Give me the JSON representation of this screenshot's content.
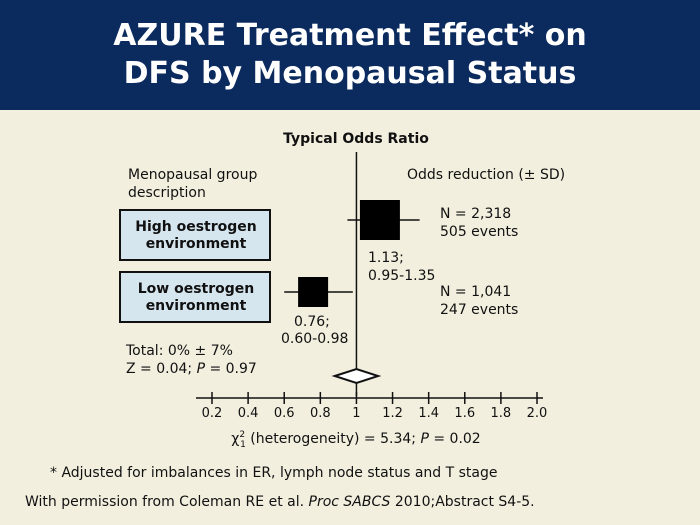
{
  "slide": {
    "title_line1": "AZURE Treatment Effect* on",
    "title_line2": "DFS by Menopausal Status",
    "footnote": "* Adjusted for imbalances in ER, lymph node status and T stage",
    "citation_pre": "With permission from Coleman RE et al. ",
    "citation_journal": "Proc SABCS",
    "citation_post": " 2010;Abstract S4-5.",
    "colors": {
      "header_bg": "#0b2a5e",
      "slide_bg": "#f3efdf",
      "box_fill": "#d6e6ef"
    }
  },
  "chart_data": {
    "type": "forest",
    "axis_title": "Typical Odds Ratio",
    "left_header_line1": "Menopausal group",
    "left_header_line2": "description",
    "right_header": "Odds reduction (± SD)",
    "xlim": [
      0.2,
      2.0
    ],
    "ticks": [
      0.2,
      0.4,
      0.6,
      0.8,
      1,
      1.2,
      1.4,
      1.6,
      1.8,
      2.0
    ],
    "tick_labels": [
      "0.2",
      "0.4",
      "0.6",
      "0.8",
      "1",
      "1.2",
      "1.4",
      "1.6",
      "1.8",
      "2.0"
    ],
    "reference": 1,
    "rows": [
      {
        "label_line1": "High oestrogen",
        "label_line2": "environment",
        "or": 1.13,
        "ci_low": 0.95,
        "ci_high": 1.35,
        "or_label": "1.13;",
        "ci_label": "0.95-1.35",
        "n_label": "N = 2,318",
        "events_label": "505 events"
      },
      {
        "label_line1": "Low oestrogen",
        "label_line2": "environment",
        "or": 0.76,
        "ci_low": 0.6,
        "ci_high": 0.98,
        "or_label": "0.76;",
        "ci_label": "0.60-0.98",
        "n_label": "N = 1,041",
        "events_label": "247 events"
      }
    ],
    "overall": {
      "or": 1.0,
      "ci_low": 0.88,
      "ci_high": 1.12,
      "total_label": "Total: 0% ± 7%",
      "z_pre": "Z = 0.04; ",
      "z_p": "P",
      "z_post": " = 0.97"
    },
    "heterogeneity": {
      "chi": "χ",
      "sup": "2",
      "sub": "1",
      "text_pre": " (heterogeneity) = 5.34; ",
      "p": "P",
      "text_post": " = 0.02"
    }
  }
}
